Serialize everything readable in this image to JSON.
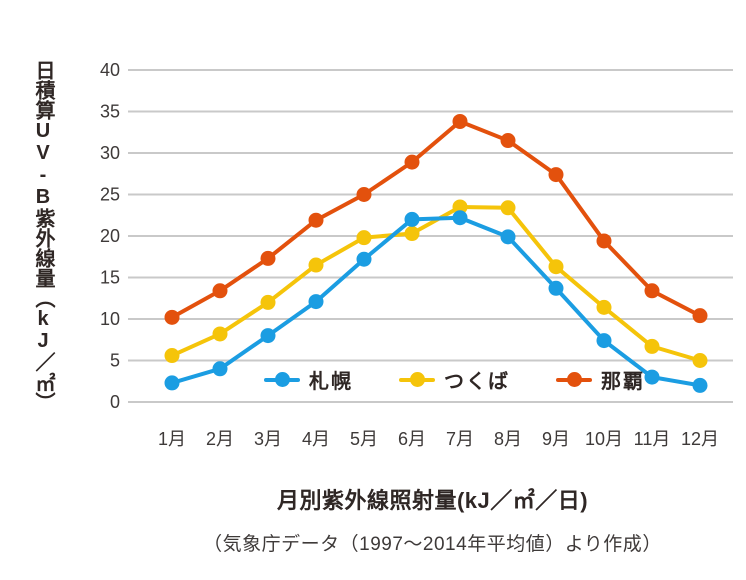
{
  "figure": {
    "y_axis_label": "日積算UV-B紫外線量（kJ／㎡）",
    "bottom_title": "月別紫外線照射量(kJ／㎡／日)",
    "source_note": "（気象庁データ（1997～2014年平均値）より作成）"
  },
  "chart_data": {
    "type": "line",
    "title": "月別紫外線照射量(kJ／㎡／日)",
    "ylabel": "日積算UV-B紫外線量（kJ／㎡）",
    "source": "（気象庁データ（1997～2014年平均値）より作成）",
    "categories": [
      "1月",
      "2月",
      "3月",
      "4月",
      "5月",
      "6月",
      "7月",
      "8月",
      "9月",
      "10月",
      "11月",
      "12月"
    ],
    "series": [
      {
        "id": "sapporo",
        "name": "札幌",
        "color": "#1B9DE2",
        "values": [
          2.3,
          4.0,
          8.0,
          12.1,
          17.2,
          22.0,
          22.2,
          19.9,
          13.7,
          7.4,
          3.0,
          2.0
        ]
      },
      {
        "id": "tsukuba",
        "name": "つくば",
        "color": "#F5C40A",
        "values": [
          5.6,
          8.2,
          12.0,
          16.5,
          19.8,
          20.3,
          23.5,
          23.4,
          16.3,
          11.4,
          6.7,
          5.0
        ]
      },
      {
        "id": "naha",
        "name": "那覇",
        "color": "#E3510D",
        "values": [
          10.2,
          13.4,
          17.3,
          21.9,
          25.0,
          28.9,
          33.8,
          31.5,
          27.4,
          19.4,
          13.4,
          10.4
        ]
      }
    ],
    "ylim": [
      0,
      40
    ],
    "ytick_step": 5,
    "yticks": [
      0,
      5,
      10,
      15,
      20,
      25,
      30,
      35,
      40
    ],
    "grid": "horizontal-only",
    "legend_position": "inside-bottom",
    "draw_order": [
      1,
      0,
      2
    ],
    "gridline_color": "#C9C9C9",
    "tick_text_color": "#3E3A39"
  }
}
